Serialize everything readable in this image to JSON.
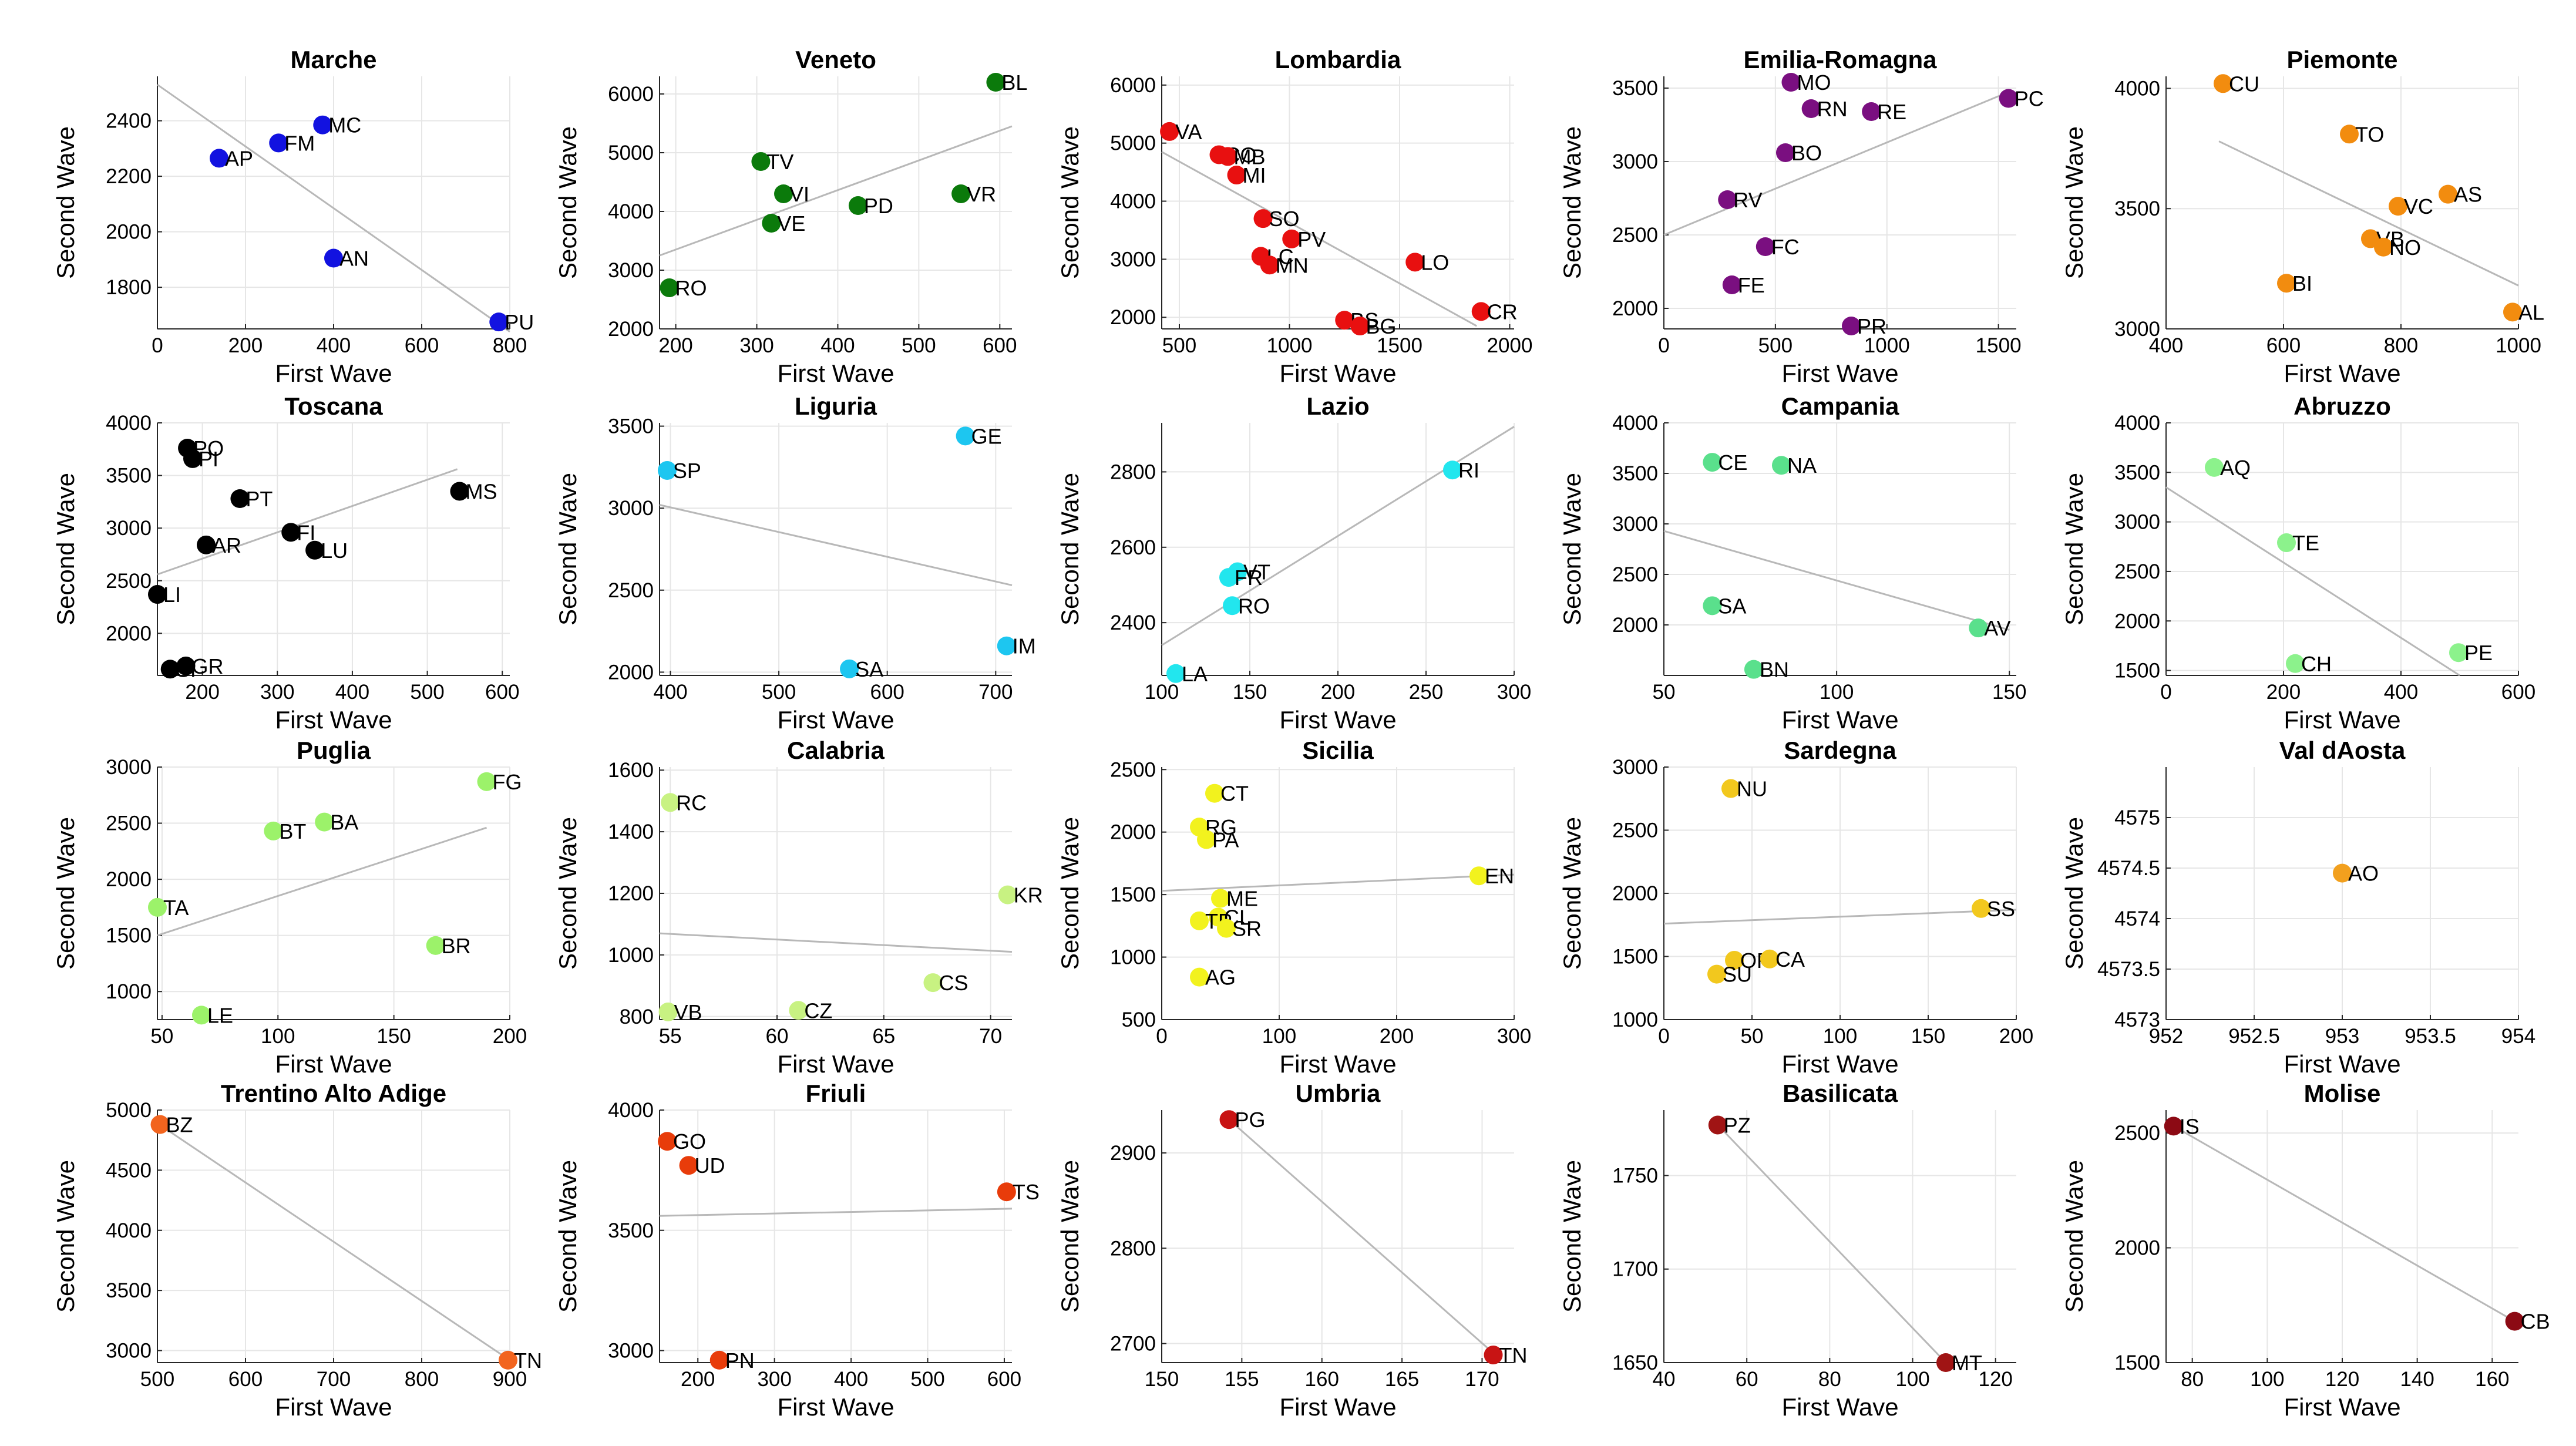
{
  "figure": {
    "xlabel": "First Wave",
    "ylabel": "Second Wave"
  },
  "chart_data": [
    {
      "type": "scatter",
      "title": "Marche",
      "color": "#1212e0",
      "xlim": [
        0,
        800
      ],
      "ylim": [
        1650,
        2560
      ],
      "xticks": [
        0,
        200,
        400,
        600,
        800
      ],
      "yticks": [
        1800,
        2000,
        2200,
        2400
      ],
      "fit": [
        [
          0,
          2530
        ],
        [
          800,
          1640
        ]
      ],
      "points": [
        {
          "label": "AP",
          "x": 140,
          "y": 2265
        },
        {
          "label": "FM",
          "x": 275,
          "y": 2320
        },
        {
          "label": "MC",
          "x": 375,
          "y": 2385
        },
        {
          "label": "AN",
          "x": 400,
          "y": 1905
        },
        {
          "label": "PU",
          "x": 775,
          "y": 1675
        }
      ]
    },
    {
      "type": "scatter",
      "title": "Veneto",
      "color": "#0b7a0b",
      "xlim": [
        180,
        615
      ],
      "ylim": [
        2000,
        6300
      ],
      "xticks": [
        200,
        300,
        400,
        500,
        600
      ],
      "yticks": [
        2000,
        3000,
        4000,
        5000,
        6000
      ],
      "fit": [
        [
          180,
          3250
        ],
        [
          615,
          5450
        ]
      ],
      "points": [
        {
          "label": "RO",
          "x": 192,
          "y": 2700
        },
        {
          "label": "TV",
          "x": 305,
          "y": 4850
        },
        {
          "label": "VI",
          "x": 333,
          "y": 4300
        },
        {
          "label": "VE",
          "x": 318,
          "y": 3800
        },
        {
          "label": "PD",
          "x": 425,
          "y": 4100
        },
        {
          "label": "VR",
          "x": 552,
          "y": 4300
        },
        {
          "label": "BL",
          "x": 595,
          "y": 6200
        }
      ]
    },
    {
      "type": "scatter",
      "title": "Lombardia",
      "color": "#e81010",
      "xlim": [
        420,
        2020
      ],
      "ylim": [
        1800,
        6150
      ],
      "xticks": [
        500,
        1000,
        1500,
        2000
      ],
      "yticks": [
        2000,
        3000,
        4000,
        5000,
        6000
      ],
      "fit": [
        [
          420,
          4850
        ],
        [
          1850,
          1850
        ]
      ],
      "points": [
        {
          "label": "VA",
          "x": 455,
          "y": 5200
        },
        {
          "label": "CO",
          "x": 680,
          "y": 4800
        },
        {
          "label": "MB",
          "x": 720,
          "y": 4770
        },
        {
          "label": "MI",
          "x": 760,
          "y": 4450
        },
        {
          "label": "SO",
          "x": 880,
          "y": 3700
        },
        {
          "label": "PV",
          "x": 1010,
          "y": 3350
        },
        {
          "label": "LC",
          "x": 870,
          "y": 3050
        },
        {
          "label": "MN",
          "x": 910,
          "y": 2900
        },
        {
          "label": "LO",
          "x": 1570,
          "y": 2950
        },
        {
          "label": "CR",
          "x": 1870,
          "y": 2100
        },
        {
          "label": "BS",
          "x": 1250,
          "y": 1950
        },
        {
          "label": "BG",
          "x": 1320,
          "y": 1850
        }
      ]
    },
    {
      "type": "scatter",
      "title": "Emilia-Romagna",
      "color": "#7a0f80",
      "xlim": [
        0,
        1580
      ],
      "ylim": [
        1860,
        3580
      ],
      "xticks": [
        0,
        500,
        1000,
        1500
      ],
      "yticks": [
        2000,
        2500,
        3000,
        3500
      ],
      "fit": [
        [
          0,
          2500
        ],
        [
          1540,
          3470
        ]
      ],
      "points": [
        {
          "label": "MO",
          "x": 570,
          "y": 3540
        },
        {
          "label": "RN",
          "x": 660,
          "y": 3360
        },
        {
          "label": "RE",
          "x": 930,
          "y": 3340
        },
        {
          "label": "PC",
          "x": 1545,
          "y": 3430
        },
        {
          "label": "BO",
          "x": 545,
          "y": 3060
        },
        {
          "label": "RV",
          "x": 285,
          "y": 2740
        },
        {
          "label": "FC",
          "x": 455,
          "y": 2420
        },
        {
          "label": "FE",
          "x": 305,
          "y": 2160
        },
        {
          "label": "PR",
          "x": 840,
          "y": 1880
        }
      ]
    },
    {
      "type": "scatter",
      "title": "Piemonte",
      "color": "#f28c0f",
      "xlim": [
        400,
        1000
      ],
      "ylim": [
        3000,
        4050
      ],
      "xticks": [
        400,
        600,
        800,
        1000
      ],
      "yticks": [
        3000,
        3500,
        4000
      ],
      "fit": [
        [
          490,
          3780
        ],
        [
          1000,
          3180
        ]
      ],
      "points": [
        {
          "label": "CU",
          "x": 497,
          "y": 4020
        },
        {
          "label": "TO",
          "x": 712,
          "y": 3810
        },
        {
          "label": "AS",
          "x": 880,
          "y": 3560
        },
        {
          "label": "VC",
          "x": 795,
          "y": 3510
        },
        {
          "label": "VB",
          "x": 748,
          "y": 3375
        },
        {
          "label": "NO",
          "x": 770,
          "y": 3340
        },
        {
          "label": "BI",
          "x": 605,
          "y": 3190
        },
        {
          "label": "AL",
          "x": 990,
          "y": 3070
        }
      ]
    },
    {
      "type": "scatter",
      "title": "Toscana",
      "color": "#000000",
      "xlim": [
        140,
        610
      ],
      "ylim": [
        1600,
        4000
      ],
      "xticks": [
        200,
        300,
        400,
        500,
        600
      ],
      "yticks": [
        2000,
        2500,
        3000,
        3500,
        4000
      ],
      "fit": [
        [
          140,
          2560
        ],
        [
          540,
          3560
        ]
      ],
      "points": [
        {
          "label": "PO",
          "x": 180,
          "y": 3760
        },
        {
          "label": "PI",
          "x": 187,
          "y": 3660
        },
        {
          "label": "PT",
          "x": 250,
          "y": 3280
        },
        {
          "label": "MS",
          "x": 543,
          "y": 3350
        },
        {
          "label": "FI",
          "x": 318,
          "y": 2960
        },
        {
          "label": "LU",
          "x": 350,
          "y": 2790
        },
        {
          "label": "AR",
          "x": 205,
          "y": 2840
        },
        {
          "label": "LI",
          "x": 140,
          "y": 2370
        },
        {
          "label": "GR",
          "x": 178,
          "y": 1690
        },
        {
          "label": "SI",
          "x": 157,
          "y": 1660
        }
      ]
    },
    {
      "type": "scatter",
      "title": "Liguria",
      "color": "#1dc6f0",
      "xlim": [
        390,
        715
      ],
      "ylim": [
        1980,
        3520
      ],
      "xticks": [
        400,
        500,
        600,
        700
      ],
      "yticks": [
        2000,
        2500,
        3000,
        3500
      ],
      "fit": [
        [
          390,
          3020
        ],
        [
          715,
          2530
        ]
      ],
      "points": [
        {
          "label": "SP",
          "x": 397,
          "y": 3230
        },
        {
          "label": "GE",
          "x": 672,
          "y": 3440
        },
        {
          "label": "IM",
          "x": 710,
          "y": 2160
        },
        {
          "label": "SA",
          "x": 565,
          "y": 2020
        }
      ]
    },
    {
      "type": "scatter",
      "title": "Lazio",
      "color": "#22e6ee",
      "xlim": [
        100,
        300
      ],
      "ylim": [
        2260,
        2930
      ],
      "xticks": [
        100,
        150,
        200,
        250,
        300
      ],
      "yticks": [
        2400,
        2600,
        2800
      ],
      "fit": [
        [
          100,
          2340
        ],
        [
          300,
          2920
        ]
      ],
      "points": [
        {
          "label": "RI",
          "x": 265,
          "y": 2805
        },
        {
          "label": "VT",
          "x": 143,
          "y": 2535
        },
        {
          "label": "FR",
          "x": 138,
          "y": 2520
        },
        {
          "label": "RO",
          "x": 140,
          "y": 2445
        },
        {
          "label": "LA",
          "x": 108,
          "y": 2265
        }
      ]
    },
    {
      "type": "scatter",
      "title": "Campania",
      "color": "#5ae08c",
      "xlim": [
        50,
        152
      ],
      "ylim": [
        1500,
        4000
      ],
      "xticks": [
        50,
        100,
        150
      ],
      "yticks": [
        2000,
        2500,
        3000,
        3500,
        4000
      ],
      "fit": [
        [
          50,
          2930
        ],
        [
          150,
          1950
        ]
      ],
      "points": [
        {
          "label": "CE",
          "x": 64,
          "y": 3610
        },
        {
          "label": "NA",
          "x": 84,
          "y": 3580
        },
        {
          "label": "SA",
          "x": 64,
          "y": 2190
        },
        {
          "label": "AV",
          "x": 141,
          "y": 1970
        },
        {
          "label": "BN",
          "x": 76,
          "y": 1560
        }
      ]
    },
    {
      "type": "scatter",
      "title": "Abruzzo",
      "color": "#8cf28c",
      "xlim": [
        0,
        600
      ],
      "ylim": [
        1450,
        4000
      ],
      "xticks": [
        0,
        200,
        400,
        600
      ],
      "yticks": [
        1500,
        2000,
        2500,
        3000,
        3500,
        4000
      ],
      "fit": [
        [
          0,
          3350
        ],
        [
          500,
          1450
        ]
      ],
      "points": [
        {
          "label": "AQ",
          "x": 82,
          "y": 3550
        },
        {
          "label": "TE",
          "x": 205,
          "y": 2790
        },
        {
          "label": "CH",
          "x": 220,
          "y": 1570
        },
        {
          "label": "PE",
          "x": 498,
          "y": 1680
        }
      ]
    },
    {
      "type": "scatter",
      "title": "Puglia",
      "color": "#9cf26a",
      "xlim": [
        48,
        200
      ],
      "ylim": [
        750,
        3000
      ],
      "xticks": [
        50,
        100,
        150,
        200
      ],
      "yticks": [
        1000,
        1500,
        2000,
        2500,
        3000
      ],
      "fit": [
        [
          48,
          1500
        ],
        [
          190,
          2460
        ]
      ],
      "points": [
        {
          "label": "FG",
          "x": 190,
          "y": 2870
        },
        {
          "label": "BA",
          "x": 120,
          "y": 2510
        },
        {
          "label": "BT",
          "x": 98,
          "y": 2430
        },
        {
          "label": "TA",
          "x": 48,
          "y": 1750
        },
        {
          "label": "BR",
          "x": 168,
          "y": 1410
        },
        {
          "label": "LE",
          "x": 67,
          "y": 790
        }
      ]
    },
    {
      "type": "scatter",
      "title": "Calabria",
      "color": "#c8f282",
      "xlim": [
        54.5,
        71
      ],
      "ylim": [
        790,
        1610
      ],
      "xticks": [
        55,
        60,
        65,
        70
      ],
      "yticks": [
        800,
        1000,
        1200,
        1400,
        1600
      ],
      "fit": [
        [
          54.5,
          1070
        ],
        [
          71,
          1010
        ]
      ],
      "points": [
        {
          "label": "RC",
          "x": 55,
          "y": 1495
        },
        {
          "label": "KR",
          "x": 70.8,
          "y": 1195
        },
        {
          "label": "CS",
          "x": 67.3,
          "y": 910
        },
        {
          "label": "CZ",
          "x": 61,
          "y": 820
        },
        {
          "label": "VB",
          "x": 54.9,
          "y": 815
        }
      ]
    },
    {
      "type": "scatter",
      "title": "Sicilia",
      "color": "#f2f21e",
      "xlim": [
        0,
        300
      ],
      "ylim": [
        500,
        2520
      ],
      "xticks": [
        0,
        100,
        200,
        300
      ],
      "yticks": [
        500,
        1000,
        1500,
        2000,
        2500
      ],
      "fit": [
        [
          0,
          1530
        ],
        [
          300,
          1660
        ]
      ],
      "points": [
        {
          "label": "CT",
          "x": 45,
          "y": 2310
        },
        {
          "label": "RG",
          "x": 32,
          "y": 2040
        },
        {
          "label": "PA",
          "x": 38,
          "y": 1940
        },
        {
          "label": "EN",
          "x": 270,
          "y": 1650
        },
        {
          "label": "ME",
          "x": 50,
          "y": 1470
        },
        {
          "label": "CL",
          "x": 48,
          "y": 1320
        },
        {
          "label": "TP",
          "x": 32,
          "y": 1290
        },
        {
          "label": "SR",
          "x": 55,
          "y": 1230
        },
        {
          "label": "AG",
          "x": 32,
          "y": 840
        }
      ]
    },
    {
      "type": "scatter",
      "title": "Sardegna",
      "color": "#f2c81e",
      "xlim": [
        0,
        200
      ],
      "ylim": [
        1000,
        3000
      ],
      "xticks": [
        0,
        50,
        100,
        150,
        200
      ],
      "yticks": [
        1000,
        1500,
        2000,
        2500,
        3000
      ],
      "fit": [
        [
          0,
          1760
        ],
        [
          200,
          1870
        ]
      ],
      "points": [
        {
          "label": "NU",
          "x": 38,
          "y": 2830
        },
        {
          "label": "SS",
          "x": 180,
          "y": 1880
        },
        {
          "label": "OR",
          "x": 40,
          "y": 1470
        },
        {
          "label": "CA",
          "x": 60,
          "y": 1480
        },
        {
          "label": "SU",
          "x": 30,
          "y": 1360
        }
      ]
    },
    {
      "type": "scatter",
      "title": "Val dAosta",
      "color": "#f2a01e",
      "xlim": [
        952,
        954
      ],
      "ylim": [
        4573,
        4575.5
      ],
      "xticks": [
        952,
        952.5,
        953,
        953.5,
        954
      ],
      "yticks": [
        4573,
        4573.5,
        4574,
        4574.5,
        4575
      ],
      "fit": null,
      "points": [
        {
          "label": "AO",
          "x": 953,
          "y": 4574.45
        }
      ]
    },
    {
      "type": "scatter",
      "title": "Trentino Alto Adige",
      "color": "#f2641e",
      "xlim": [
        500,
        900
      ],
      "ylim": [
        2900,
        5000
      ],
      "xticks": [
        500,
        600,
        700,
        800,
        900
      ],
      "yticks": [
        3000,
        3500,
        4000,
        4500,
        5000
      ],
      "fit": [
        [
          500,
          4890
        ],
        [
          900,
          2920
        ]
      ],
      "points": [
        {
          "label": "BZ",
          "x": 503,
          "y": 4880
        },
        {
          "label": "TN",
          "x": 898,
          "y": 2920
        }
      ]
    },
    {
      "type": "scatter",
      "title": "Friuli",
      "color": "#e83c0a",
      "xlim": [
        150,
        610
      ],
      "ylim": [
        2950,
        4000
      ],
      "xticks": [
        200,
        300,
        400,
        500,
        600
      ],
      "yticks": [
        3000,
        3500,
        4000
      ],
      "fit": [
        [
          150,
          3560
        ],
        [
          610,
          3590
        ]
      ],
      "points": [
        {
          "label": "GO",
          "x": 160,
          "y": 3870
        },
        {
          "label": "UD",
          "x": 188,
          "y": 3770
        },
        {
          "label": "TS",
          "x": 603,
          "y": 3660
        },
        {
          "label": "PN",
          "x": 228,
          "y": 2960
        }
      ]
    },
    {
      "type": "scatter",
      "title": "Umbria",
      "color": "#c81414",
      "xlim": [
        150,
        172
      ],
      "ylim": [
        2680,
        2945
      ],
      "xticks": [
        150,
        155,
        160,
        165,
        170
      ],
      "yticks": [
        2700,
        2800,
        2900
      ],
      "fit": [
        [
          154.2,
          2935
        ],
        [
          170.7,
          2690
        ]
      ],
      "points": [
        {
          "label": "PG",
          "x": 154.2,
          "y": 2935
        },
        {
          "label": "TN",
          "x": 170.7,
          "y": 2688
        }
      ]
    },
    {
      "type": "scatter",
      "title": "Basilicata",
      "color": "#a01414",
      "xlim": [
        40,
        125
      ],
      "ylim": [
        1650,
        1785
      ],
      "xticks": [
        40,
        60,
        80,
        100,
        120
      ],
      "yticks": [
        1650,
        1700,
        1750
      ],
      "fit": [
        [
          53,
          1777
        ],
        [
          108,
          1650
        ]
      ],
      "points": [
        {
          "label": "PZ",
          "x": 53,
          "y": 1777
        },
        {
          "label": "MT",
          "x": 108,
          "y": 1650
        }
      ]
    },
    {
      "type": "scatter",
      "title": "Molise",
      "color": "#8c0a14",
      "xlim": [
        73,
        167
      ],
      "ylim": [
        1500,
        2600
      ],
      "xticks": [
        80,
        100,
        120,
        140,
        160
      ],
      "yticks": [
        1500,
        2000,
        2500
      ],
      "fit": [
        [
          75,
          2530
        ],
        [
          166,
          1680
        ]
      ],
      "points": [
        {
          "label": "IS",
          "x": 75,
          "y": 2530
        },
        {
          "label": "CB",
          "x": 166,
          "y": 1680
        }
      ]
    }
  ]
}
